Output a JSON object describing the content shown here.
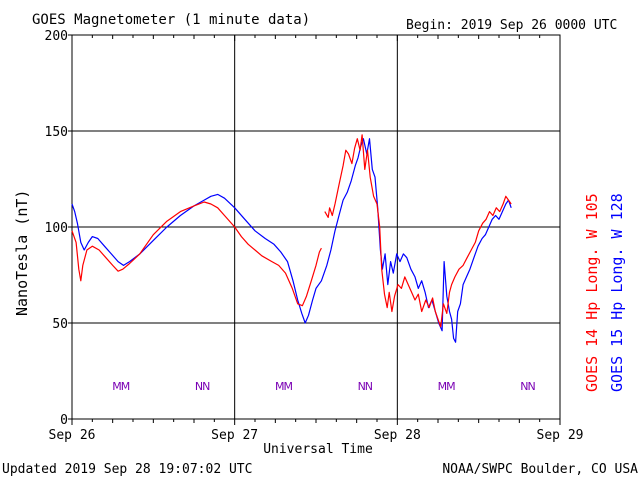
{
  "header": {
    "title": "GOES Magnetometer (1 minute data)",
    "begin": "Begin:  2019 Sep 26 0000 UTC"
  },
  "footer": {
    "updated": "Updated 2019 Sep 28 19:07:02 UTC",
    "credit": "NOAA/SWPC Boulder, CO USA"
  },
  "colors": {
    "goes14": "#ff0000",
    "goes15": "#0000ff",
    "mixed": "#7a00b4",
    "grid": "#000000"
  },
  "chart_data": {
    "type": "line",
    "title": "GOES Magnetometer (1 minute data)",
    "xlabel": "Universal Time",
    "ylabel": "NanoTesla (nT)",
    "ylim": [
      0,
      200
    ],
    "xlim": [
      0,
      72
    ],
    "x_unit": "hours since 2019 Sep 26 0000 UTC",
    "yticks": [
      0,
      50,
      100,
      150,
      200
    ],
    "xtick_labels": [
      "Sep 26",
      "Sep 27",
      "Sep 28",
      "Sep 29"
    ],
    "xtick_positions": [
      0,
      24,
      48,
      72
    ],
    "grid": true,
    "series": [
      {
        "name": "GOES 14 Hp  Long. W 105",
        "color": "#ff0000",
        "points": [
          [
            0,
            98
          ],
          [
            0.6,
            92
          ],
          [
            1.0,
            78
          ],
          [
            1.3,
            72
          ],
          [
            1.6,
            80
          ],
          [
            2.2,
            88
          ],
          [
            3,
            90
          ],
          [
            4,
            88
          ],
          [
            5,
            84
          ],
          [
            6,
            80
          ],
          [
            6.8,
            77
          ],
          [
            7.5,
            78
          ],
          [
            8.5,
            81
          ],
          [
            10,
            86
          ],
          [
            12,
            96
          ],
          [
            14,
            103
          ],
          [
            16,
            108
          ],
          [
            18,
            111
          ],
          [
            19.5,
            113
          ],
          [
            20.5,
            112
          ],
          [
            21.5,
            110
          ],
          [
            22.5,
            106
          ],
          [
            24,
            100
          ],
          [
            25,
            95
          ],
          [
            26,
            91
          ],
          [
            27,
            88
          ],
          [
            28,
            85
          ],
          [
            29.5,
            82
          ],
          [
            30.5,
            80
          ],
          [
            31.5,
            76
          ],
          [
            32.5,
            68
          ],
          [
            33.3,
            60
          ],
          [
            34,
            59
          ],
          [
            34.6,
            64
          ],
          [
            35.3,
            72
          ],
          [
            36,
            80
          ],
          [
            36.5,
            87
          ],
          [
            36.8,
            89
          ],
          null,
          [
            37.3,
            108
          ],
          [
            37.8,
            105
          ],
          [
            38,
            110
          ],
          [
            38.4,
            106
          ],
          [
            38.8,
            112
          ],
          [
            39.4,
            122
          ],
          [
            40,
            132
          ],
          [
            40.4,
            140
          ],
          [
            40.8,
            138
          ],
          [
            41.3,
            133
          ],
          [
            41.7,
            141
          ],
          [
            42.1,
            146
          ],
          [
            42.5,
            140
          ],
          [
            42.8,
            148
          ],
          [
            43.2,
            130
          ],
          [
            43.6,
            140
          ],
          [
            44,
            126
          ],
          [
            44.5,
            116
          ],
          [
            45,
            112
          ],
          [
            45.4,
            100
          ],
          [
            45.7,
            78
          ],
          [
            46.1,
            65
          ],
          [
            46.5,
            58
          ],
          [
            46.8,
            66
          ],
          [
            47.2,
            56
          ],
          [
            47.6,
            64
          ],
          [
            48.1,
            70
          ],
          [
            48.6,
            68
          ],
          [
            49.1,
            74
          ],
          [
            49.6,
            70
          ],
          [
            50.1,
            66
          ],
          [
            50.6,
            62
          ],
          [
            51.1,
            65
          ],
          [
            51.6,
            56
          ],
          [
            52.2,
            62
          ],
          [
            52.7,
            58
          ],
          [
            53.2,
            63
          ],
          [
            53.6,
            56
          ],
          [
            54.0,
            52
          ],
          [
            54.4,
            48
          ],
          [
            54.8,
            60
          ],
          [
            55.3,
            55
          ],
          [
            55.7,
            66
          ],
          [
            56.0,
            70
          ],
          [
            56.5,
            74
          ],
          [
            57.1,
            78
          ],
          [
            57.7,
            80
          ],
          [
            58.3,
            84
          ],
          [
            58.9,
            88
          ],
          [
            59.5,
            92
          ],
          [
            60.0,
            98
          ],
          [
            60.6,
            102
          ],
          [
            61.1,
            104
          ],
          [
            61.6,
            108
          ],
          [
            62.1,
            106
          ],
          [
            62.6,
            110
          ],
          [
            63.1,
            108
          ],
          [
            63.6,
            112
          ],
          [
            64.0,
            116
          ],
          [
            64.4,
            114
          ],
          [
            64.8,
            112
          ]
        ]
      },
      {
        "name": "GOES 15 Hp  Long. W 128",
        "color": "#0000ff",
        "points": [
          [
            0,
            112
          ],
          [
            0.4,
            108
          ],
          [
            0.8,
            102
          ],
          [
            1.3,
            92
          ],
          [
            1.8,
            88
          ],
          [
            2.4,
            92
          ],
          [
            3,
            95
          ],
          [
            3.8,
            94
          ],
          [
            4.8,
            90
          ],
          [
            5.8,
            86
          ],
          [
            6.8,
            82
          ],
          [
            7.6,
            80
          ],
          [
            8.5,
            82
          ],
          [
            10,
            86
          ],
          [
            12,
            93
          ],
          [
            14,
            100
          ],
          [
            16,
            106
          ],
          [
            18,
            111
          ],
          [
            19.5,
            114
          ],
          [
            20.5,
            116
          ],
          [
            21.5,
            117
          ],
          [
            22.5,
            115
          ],
          [
            24,
            110
          ],
          [
            25.5,
            104
          ],
          [
            27,
            98
          ],
          [
            28.5,
            94
          ],
          [
            29.8,
            91
          ],
          [
            30.8,
            87
          ],
          [
            31.8,
            82
          ],
          [
            32.6,
            72
          ],
          [
            33.3,
            62
          ],
          [
            33.9,
            55
          ],
          [
            34.4,
            50
          ],
          [
            34.9,
            54
          ],
          [
            35.5,
            62
          ],
          [
            36,
            68
          ],
          [
            36.8,
            72
          ],
          [
            37.6,
            80
          ],
          [
            38.2,
            88
          ],
          [
            38.8,
            98
          ],
          [
            39.4,
            106
          ],
          [
            40,
            114
          ],
          [
            40.6,
            118
          ],
          [
            41.2,
            124
          ],
          [
            41.8,
            132
          ],
          [
            42.2,
            136
          ],
          [
            42.6,
            142
          ],
          [
            43,
            146
          ],
          [
            43.5,
            138
          ],
          [
            43.9,
            146
          ],
          [
            44.3,
            130
          ],
          [
            44.7,
            126
          ],
          [
            45.1,
            110
          ],
          [
            45.5,
            88
          ],
          [
            45.8,
            78
          ],
          [
            46.2,
            86
          ],
          [
            46.6,
            70
          ],
          [
            47,
            82
          ],
          [
            47.4,
            76
          ],
          [
            47.9,
            86
          ],
          [
            48.4,
            82
          ],
          [
            48.9,
            86
          ],
          [
            49.4,
            84
          ],
          [
            50.0,
            78
          ],
          [
            50.6,
            74
          ],
          [
            51.1,
            68
          ],
          [
            51.6,
            72
          ],
          [
            52.1,
            66
          ],
          [
            52.6,
            58
          ],
          [
            53.1,
            62
          ],
          [
            53.6,
            56
          ],
          [
            54.1,
            50
          ],
          [
            54.6,
            46
          ],
          [
            54.9,
            82
          ],
          [
            55.3,
            64
          ],
          [
            55.7,
            56
          ],
          [
            56.0,
            52
          ],
          [
            56.3,
            42
          ],
          [
            56.6,
            40
          ],
          [
            56.9,
            56
          ],
          [
            57.3,
            60
          ],
          [
            57.7,
            70
          ],
          [
            58.2,
            74
          ],
          [
            58.7,
            78
          ],
          [
            59.3,
            84
          ],
          [
            59.9,
            90
          ],
          [
            60.5,
            94
          ],
          [
            61.0,
            96
          ],
          [
            61.5,
            100
          ],
          [
            62.0,
            104
          ],
          [
            62.5,
            106
          ],
          [
            63.0,
            104
          ],
          [
            63.5,
            108
          ],
          [
            64.0,
            112
          ],
          [
            64.4,
            114
          ],
          [
            64.8,
            110
          ]
        ]
      }
    ],
    "mn_markers": {
      "labels": [
        "MM",
        "NN",
        "MM",
        "NN",
        "MM",
        "NN"
      ],
      "x": [
        7.2,
        19.2,
        31.2,
        43.2,
        55.2,
        67.2
      ]
    },
    "legend": {
      "placement": "right (vertical)",
      "entries": [
        "GOES 14 Hp  Long. W 105",
        "GOES 15 Hp  Long. W 128"
      ]
    }
  }
}
